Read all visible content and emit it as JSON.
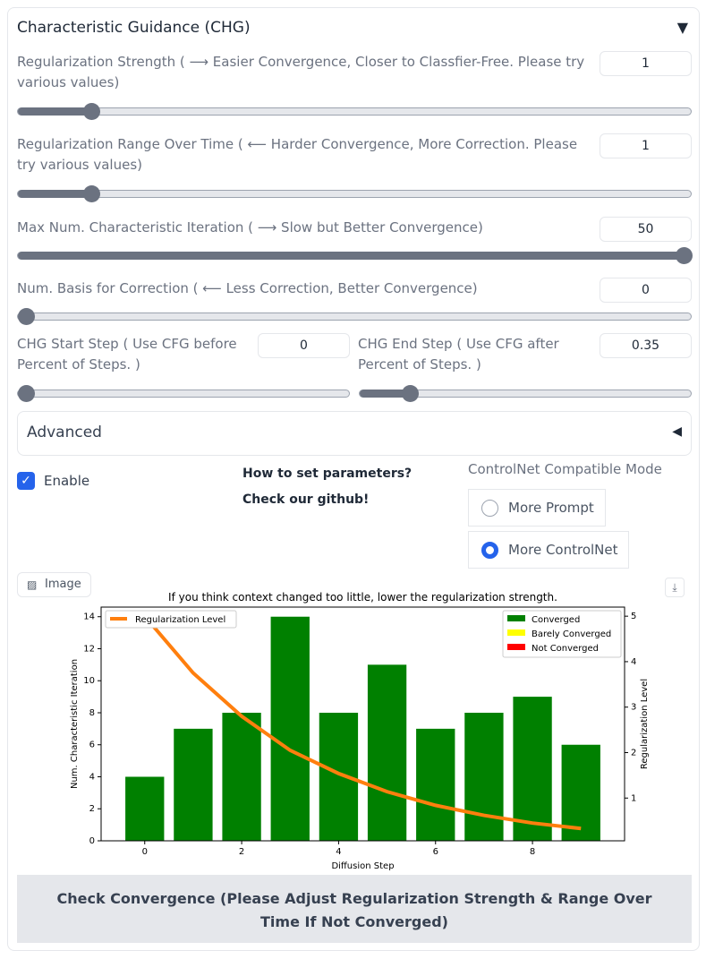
{
  "panel": {
    "title": "Characteristic Guidance (CHG)",
    "collapse_icon": "triangle-down"
  },
  "sliders": [
    {
      "label": "Regularization Strength ( ⟶ Easier Convergence, Closer to Classfier-Free. Please try various values)",
      "value": "1",
      "fraction": 0.11
    },
    {
      "label": "Regularization Range Over Time ( ⟵ Harder Convergence, More Correction. Please try various values)",
      "value": "1",
      "fraction": 0.11
    },
    {
      "label": "Max Num. Characteristic Iteration ( ⟶ Slow but Better Convergence)",
      "value": "50",
      "fraction": 1.0
    },
    {
      "label": "Num. Basis for Correction ( ⟵ Less Correction, Better Convergence)",
      "value": "0",
      "fraction": 0.0
    },
    {
      "label": "CHG Start Step ( Use CFG before Percent of Steps. )",
      "value": "0",
      "fraction": 0.0
    },
    {
      "label": "CHG End Step ( Use CFG after Percent of Steps. )",
      "value": "0.35",
      "fraction": 0.15
    }
  ],
  "advanced": {
    "label": "Advanced",
    "icon": "triangle-left"
  },
  "enable": {
    "label": "Enable",
    "checked": true
  },
  "help_text": "How to set parameters? Check our github!",
  "mode": {
    "label": "ControlNet Compatible Mode",
    "options": [
      "More Prompt",
      "More ControlNet"
    ],
    "selected": "More ControlNet"
  },
  "image_label": "Image",
  "check_button": "Check Convergence (Please Adjust Regularization Strength & Range Over Time If Not Converged)",
  "chart_data": {
    "type": "bar",
    "title": "If you think context changed too little, lower the regularization strength.",
    "xlabel": "Diffusion Step",
    "ylabel": "Num. Characteristic Iteration",
    "y2label": "Regularization Level",
    "x": [
      0,
      1,
      2,
      3,
      4,
      5,
      6,
      7,
      8,
      9
    ],
    "values": [
      4,
      7,
      8,
      14,
      8,
      11,
      7,
      8,
      9,
      6
    ],
    "bar_status": [
      "Converged",
      "Converged",
      "Converged",
      "Converged",
      "Converged",
      "Converged",
      "Converged",
      "Converged",
      "Converged",
      "Converged"
    ],
    "line": {
      "name": "Regularization Level",
      "values": [
        5.0,
        3.75,
        2.8,
        2.05,
        1.54,
        1.14,
        0.84,
        0.62,
        0.45,
        0.33
      ],
      "color": "#ff7f0e"
    },
    "xlim": [
      -0.9,
      9.9
    ],
    "ylim": [
      0,
      14.6
    ],
    "y2lim": [
      0.06,
      5.2
    ],
    "xticks": [
      0,
      2,
      4,
      6,
      8
    ],
    "yticks": [
      0,
      2,
      4,
      6,
      8,
      10,
      12,
      14
    ],
    "y2ticks": [
      1,
      2,
      3,
      4,
      5
    ],
    "legend_bars": [
      {
        "label": "Converged",
        "color": "#008000"
      },
      {
        "label": "Barely Converged",
        "color": "#ffff00"
      },
      {
        "label": "Not Converged",
        "color": "#ff0000"
      }
    ],
    "legend_line_placement": "top-left",
    "legend_bars_placement": "top-right"
  }
}
